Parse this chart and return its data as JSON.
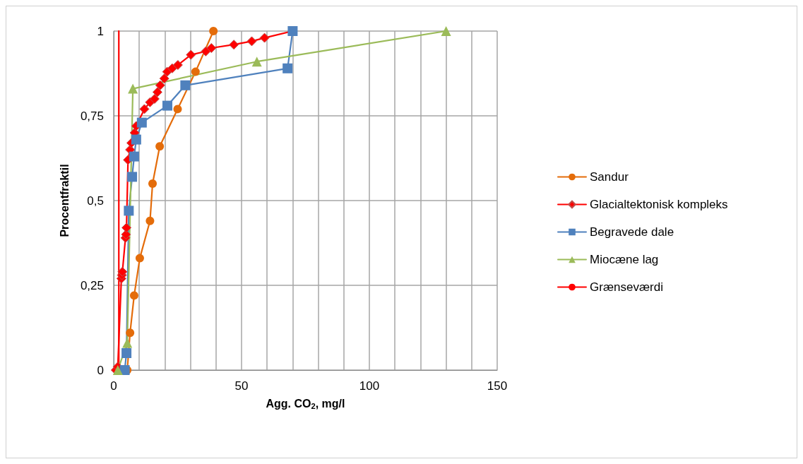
{
  "chart_data": {
    "type": "line",
    "xlabel": "Agg. CO$_{2}$, mg/l",
    "ylabel": "Procentfraktil",
    "xlim": [
      0,
      150
    ],
    "xticks": [
      0,
      {
        "value": 10,
        "label": null
      },
      {
        "value": 20,
        "label": null
      },
      {
        "value": 30,
        "label": null
      },
      {
        "value": 40,
        "label": null
      },
      50,
      {
        "value": 60,
        "label": null
      },
      {
        "value": 70,
        "label": null
      },
      {
        "value": 80,
        "label": null
      },
      {
        "value": 90,
        "label": null
      },
      100,
      {
        "value": 110,
        "label": null
      },
      {
        "value": 120,
        "label": null
      },
      {
        "value": 130,
        "label": null
      },
      {
        "value": 140,
        "label": null
      },
      150
    ],
    "ylim": [
      0,
      1
    ],
    "yticks": [
      0,
      {
        "value": 0.25,
        "label": "0,25"
      },
      {
        "value": 0.5,
        "label": "0,5"
      },
      {
        "value": 0.75,
        "label": "0,75"
      },
      1
    ],
    "grid": true,
    "legend": "right",
    "series": [
      {
        "name": "Sandur",
        "color": "#e46c0a",
        "marker": "circle",
        "x": [
          5.3,
          6.4,
          8,
          10.2,
          14.2,
          15.2,
          18,
          25,
          32,
          39
        ],
        "values": [
          0,
          0.11,
          0.22,
          0.33,
          0.44,
          0.55,
          0.66,
          0.77,
          0.88,
          1
        ]
      },
      {
        "name": "Glacialtektonisk kompleks",
        "color": "#ff0000",
        "marker": "diamond",
        "x": [
          0.8,
          1.6,
          3,
          3.2,
          3.4,
          4.6,
          4.8,
          5,
          5.6,
          6.4,
          6.9,
          8.2,
          8.8,
          12,
          14.2,
          16,
          17.1,
          18.2,
          19.8,
          20.9,
          22.9,
          25.1,
          30.2,
          36,
          38.2,
          47,
          54,
          59,
          70
        ],
        "values": [
          0,
          0.01,
          0.27,
          0.28,
          0.29,
          0.39,
          0.4,
          0.42,
          0.62,
          0.65,
          0.67,
          0.7,
          0.72,
          0.77,
          0.79,
          0.8,
          0.82,
          0.84,
          0.86,
          0.88,
          0.89,
          0.9,
          0.93,
          0.94,
          0.95,
          0.96,
          0.97,
          0.98,
          1
        ]
      },
      {
        "name": "Begravede dale",
        "color": "#4f81bd",
        "marker": "square",
        "x": [
          4.3,
          5,
          5.9,
          7.2,
          8,
          8.8,
          11,
          21,
          28,
          68,
          70
        ],
        "values": [
          0,
          0.05,
          0.47,
          0.57,
          0.63,
          0.68,
          0.73,
          0.78,
          0.84,
          0.89,
          1
        ]
      },
      {
        "name": "Miocæne lag",
        "color": "#9bbb59",
        "marker": "triangle",
        "x": [
          1.6,
          5.3,
          7.5,
          56,
          130
        ],
        "values": [
          0,
          0.08,
          0.83,
          0.91,
          1
        ]
      },
      {
        "name": "Grænseværdi",
        "color": "#ff0000",
        "marker": "none",
        "x": [
          2,
          2
        ],
        "values": [
          0,
          1
        ]
      }
    ]
  }
}
